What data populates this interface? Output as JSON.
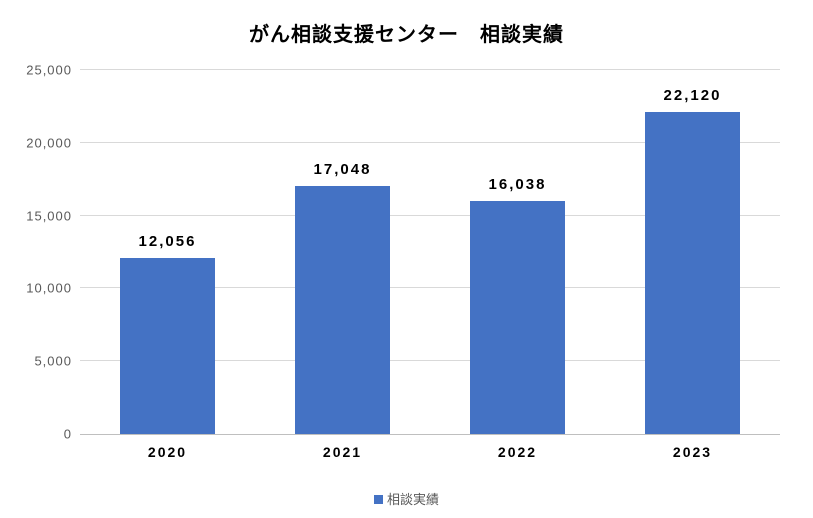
{
  "chart": {
    "type": "bar",
    "title": "がん相談支援センター　相談実績",
    "title_fontsize": 20,
    "title_color": "#000000",
    "categories": [
      "2020",
      "2021",
      "2022",
      "2023"
    ],
    "values": [
      12056,
      17048,
      16038,
      22120
    ],
    "value_labels": [
      "12,056",
      "17,048",
      "16,038",
      "22,120"
    ],
    "bar_color": "#4472c4",
    "ylim": [
      0,
      25000
    ],
    "ytick_step": 5000,
    "yticks": [
      0,
      5000,
      10000,
      15000,
      20000,
      25000
    ],
    "ytick_labels": [
      "0",
      "5,000",
      "10,000",
      "15,000",
      "20,000",
      "25,000"
    ],
    "grid_color": "#d9d9d9",
    "axis_color": "#bfbfbf",
    "background_color": "#ffffff",
    "label_fontsize": 15,
    "tick_fontsize": 13,
    "tick_color": "#595959",
    "bar_width_ratio": 0.54,
    "legend": {
      "label": "相談実績",
      "color": "#4472c4",
      "position": "bottom"
    }
  }
}
